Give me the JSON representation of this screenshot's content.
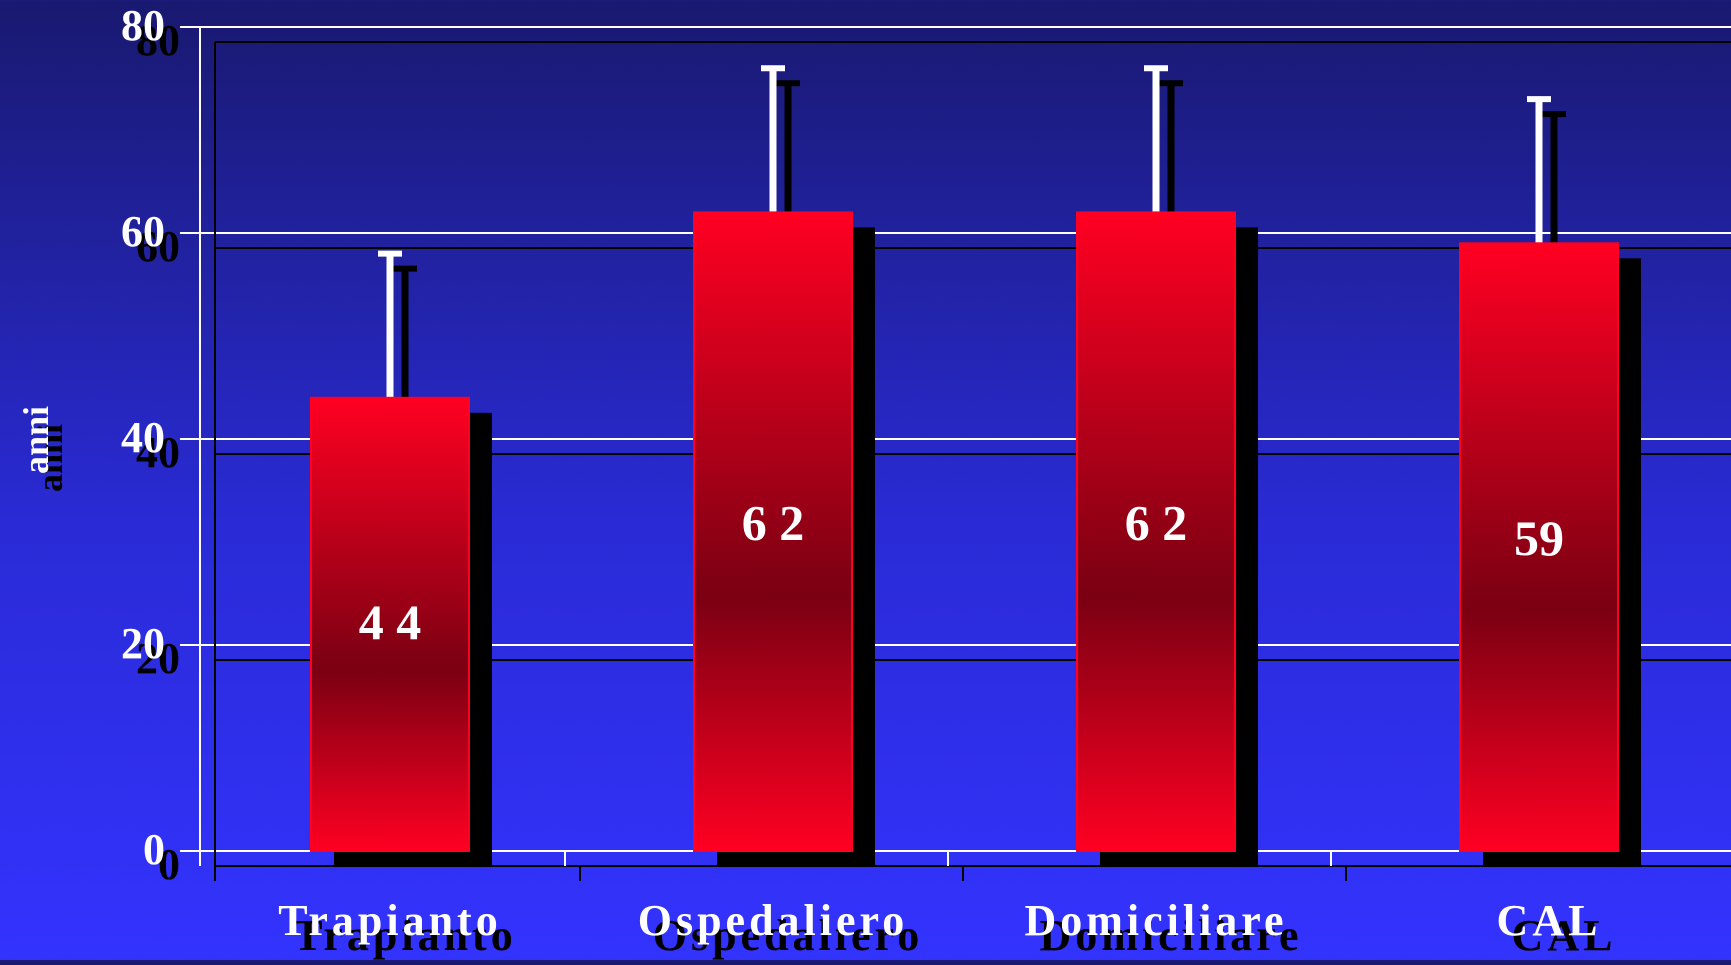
{
  "chart_data": {
    "type": "bar",
    "categories": [
      "Trapianto",
      "Ospedaliero",
      "Domiciliare",
      "CAL"
    ],
    "values": [
      44,
      62,
      62,
      59
    ],
    "value_labels": [
      "4 4",
      "6 2",
      "6 2",
      "59"
    ],
    "error_upper": [
      58,
      76,
      76,
      73
    ],
    "ylabel": "anni",
    "ylim": [
      0,
      80
    ],
    "yticks": [
      0,
      20,
      40,
      60,
      80
    ],
    "grid": true,
    "colors": {
      "bar_top": "#ff0022",
      "bar_mid": "#7a0012",
      "shadow": "#000000",
      "grid": "#ffffff",
      "text": "#ffffff",
      "error_bar": "#ffffff"
    }
  }
}
